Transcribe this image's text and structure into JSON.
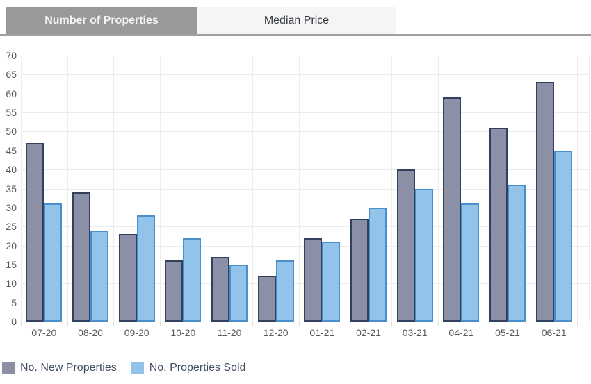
{
  "tabs": {
    "items": [
      {
        "label": "Number of Properties",
        "active": true
      },
      {
        "label": "Median Price",
        "active": false
      }
    ]
  },
  "chart_data": {
    "type": "bar",
    "title": "",
    "categories": [
      "07-20",
      "08-20",
      "09-20",
      "10-20",
      "11-20",
      "12-20",
      "01-21",
      "02-21",
      "03-21",
      "04-21",
      "05-21",
      "06-21"
    ],
    "series": [
      {
        "name": "No. New Properties",
        "fill": "#8b90a7",
        "border": "#32405f",
        "values": [
          47,
          34,
          23,
          16,
          17,
          12,
          22,
          27,
          40,
          59,
          51,
          63
        ]
      },
      {
        "name": "No. Properties Sold",
        "fill": "#92c3ea",
        "border": "#4a8fcb",
        "values": [
          31,
          24,
          28,
          22,
          15,
          16,
          21,
          30,
          35,
          31,
          36,
          45
        ]
      }
    ],
    "xlabel": "",
    "ylabel": "",
    "ylim": [
      0,
      70
    ],
    "ytick_step": 5,
    "grid": true,
    "legend_position": "bottom-left"
  },
  "colors": {
    "active_tab_bg": "#999999",
    "active_tab_text": "#f3f3f3",
    "inactive_tab_bg": "#f5f5f5",
    "inactive_tab_text": "#33373f",
    "gridline": "#ececec",
    "axis_label": "#595959",
    "legend_text": "#414e63"
  }
}
